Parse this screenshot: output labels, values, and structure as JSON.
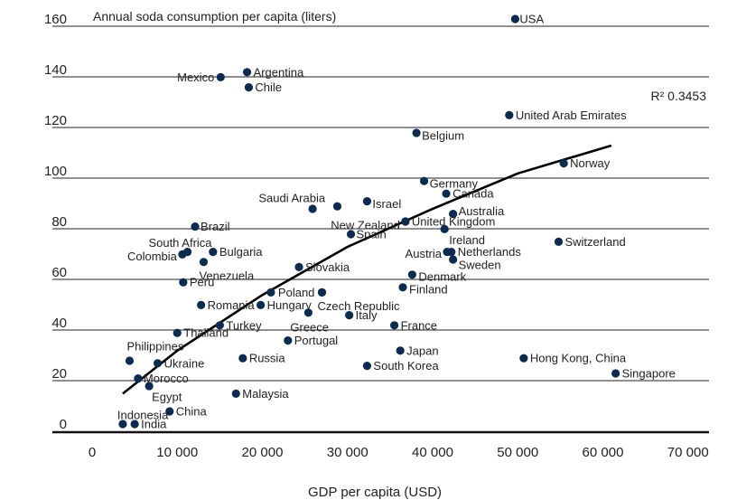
{
  "chart_data": {
    "type": "scatter",
    "title": "Annual soda consumption per capita (liters)",
    "xlabel": "GDP per capita (USD)",
    "ylabel": "",
    "xlim": [
      -5000,
      72000
    ],
    "ylim": [
      -2,
      165
    ],
    "xticks": [
      0,
      10000,
      20000,
      30000,
      40000,
      50000,
      60000,
      70000
    ],
    "xtick_labels": [
      "0",
      "10 000",
      "20 000",
      "30 000",
      "40 000",
      "50 000",
      "60 000",
      "70 000"
    ],
    "yticks": [
      0,
      20,
      40,
      60,
      80,
      100,
      120,
      140,
      160
    ],
    "grid": true,
    "annotation": "R² 0.3453",
    "marker_color": "#0d2a4f",
    "points": [
      {
        "name": "USA",
        "x": 49700,
        "y": 160,
        "lx": 5,
        "ly": 0,
        "anchor": "start"
      },
      {
        "name": "Argentina",
        "x": 18200,
        "y": 139,
        "lx": 7,
        "ly": 0,
        "anchor": "start"
      },
      {
        "name": "Mexico",
        "x": 15100,
        "y": 137,
        "lx": -7,
        "ly": 0,
        "anchor": "end"
      },
      {
        "name": "Chile",
        "x": 18400,
        "y": 133,
        "lx": 7,
        "ly": 0,
        "anchor": "start"
      },
      {
        "name": "United Arab Emirates",
        "x": 49000,
        "y": 122,
        "lx": 7,
        "ly": 0,
        "anchor": "start"
      },
      {
        "name": "Belgium",
        "x": 38100,
        "y": 115,
        "lx": 6,
        "ly": 3,
        "anchor": "start"
      },
      {
        "name": "Norway",
        "x": 55400,
        "y": 103,
        "lx": 7,
        "ly": 0,
        "anchor": "start"
      },
      {
        "name": "Germany",
        "x": 39000,
        "y": 96,
        "lx": 6,
        "ly": 3,
        "anchor": "start"
      },
      {
        "name": "Canada",
        "x": 41600,
        "y": 91,
        "lx": 7,
        "ly": 0,
        "anchor": "start"
      },
      {
        "name": "Saudi Arabia",
        "x": 25900,
        "y": 85,
        "lx": 14,
        "ly": -12,
        "anchor": "end"
      },
      {
        "name": "Israel",
        "x": 32300,
        "y": 88,
        "lx": 6,
        "ly": 3,
        "anchor": "start"
      },
      {
        "name": "",
        "x": 28800,
        "y": 86,
        "lx": 0,
        "ly": 0,
        "anchor": "start"
      },
      {
        "name": "Australia",
        "x": 42400,
        "y": 83,
        "lx": 6,
        "ly": -3,
        "anchor": "start"
      },
      {
        "name": "New Zealand",
        "x": 36800,
        "y": 80,
        "lx": -6,
        "ly": 4,
        "anchor": "end"
      },
      {
        "name": "United Kingdom",
        "x": 36800,
        "y": 80,
        "lx": 7,
        "ly": 0,
        "anchor": "start"
      },
      {
        "name": "Brazil",
        "x": 12100,
        "y": 78,
        "lx": 6,
        "ly": 0,
        "anchor": "start"
      },
      {
        "name": "Spain",
        "x": 30400,
        "y": 75,
        "lx": 6,
        "ly": 0,
        "anchor": "start"
      },
      {
        "name": "Ireland",
        "x": 41400,
        "y": 77,
        "lx": 5,
        "ly": 12,
        "anchor": "start"
      },
      {
        "name": "Switzerland",
        "x": 54800,
        "y": 72,
        "lx": 7,
        "ly": 0,
        "anchor": "start"
      },
      {
        "name": "South Africa",
        "x": 11200,
        "y": 68,
        "lx": 27,
        "ly": -10,
        "anchor": "end"
      },
      {
        "name": "Bulgaria",
        "x": 14200,
        "y": 68,
        "lx": 7,
        "ly": 0,
        "anchor": "start"
      },
      {
        "name": "Colombia",
        "x": 10600,
        "y": 67,
        "lx": -6,
        "ly": 2,
        "anchor": "end"
      },
      {
        "name": "Austria",
        "x": 41700,
        "y": 68,
        "lx": -6,
        "ly": 2,
        "anchor": "end"
      },
      {
        "name": "Netherlands",
        "x": 42200,
        "y": 68,
        "lx": 7,
        "ly": 0,
        "anchor": "start"
      },
      {
        "name": "Sweden",
        "x": 42400,
        "y": 65,
        "lx": 6,
        "ly": 6,
        "anchor": "start"
      },
      {
        "name": "Venezuela",
        "x": 13100,
        "y": 64,
        "lx": -5,
        "ly": 15,
        "anchor": "start"
      },
      {
        "name": "Slovakia",
        "x": 24300,
        "y": 62,
        "lx": 7,
        "ly": 0,
        "anchor": "start"
      },
      {
        "name": "Denmark",
        "x": 37600,
        "y": 59,
        "lx": 7,
        "ly": 2,
        "anchor": "start"
      },
      {
        "name": "Peru",
        "x": 10700,
        "y": 56,
        "lx": 7,
        "ly": 0,
        "anchor": "start"
      },
      {
        "name": "Finland",
        "x": 36500,
        "y": 54,
        "lx": 7,
        "ly": 2,
        "anchor": "start"
      },
      {
        "name": "Poland",
        "x": 21000,
        "y": 52,
        "lx": 8,
        "ly": 0,
        "anchor": "start"
      },
      {
        "name": "",
        "x": 27000,
        "y": 52,
        "lx": 0,
        "ly": 0,
        "anchor": "start"
      },
      {
        "name": "Czech Republic",
        "x": 27000,
        "y": 52,
        "lx": -5,
        "ly": 15,
        "anchor": "start"
      },
      {
        "name": "Romania",
        "x": 12800,
        "y": 47,
        "lx": 7,
        "ly": 0,
        "anchor": "start"
      },
      {
        "name": "Hungary",
        "x": 19800,
        "y": 47,
        "lx": 7,
        "ly": 0,
        "anchor": "start"
      },
      {
        "name": "Greece",
        "x": 25400,
        "y": 44,
        "lx": -20,
        "ly": 16,
        "anchor": "start"
      },
      {
        "name": "Italy",
        "x": 30200,
        "y": 43,
        "lx": 7,
        "ly": 0,
        "anchor": "start"
      },
      {
        "name": "France",
        "x": 35500,
        "y": 39,
        "lx": 7,
        "ly": 0,
        "anchor": "start"
      },
      {
        "name": "Turkey",
        "x": 15000,
        "y": 39,
        "lx": 7,
        "ly": 0,
        "anchor": "start"
      },
      {
        "name": "Thailand",
        "x": 10000,
        "y": 36,
        "lx": 7,
        "ly": 0,
        "anchor": "start"
      },
      {
        "name": "Portugal",
        "x": 23000,
        "y": 33,
        "lx": 7,
        "ly": 0,
        "anchor": "start"
      },
      {
        "name": "Philippines",
        "x": 4400,
        "y": 25,
        "lx": -3,
        "ly": -16,
        "anchor": "start"
      },
      {
        "name": "Japan",
        "x": 36200,
        "y": 29,
        "lx": 7,
        "ly": 0,
        "anchor": "start"
      },
      {
        "name": "Russia",
        "x": 17700,
        "y": 26,
        "lx": 7,
        "ly": 0,
        "anchor": "start"
      },
      {
        "name": "Ukraine",
        "x": 7700,
        "y": 24,
        "lx": 7,
        "ly": 0,
        "anchor": "start"
      },
      {
        "name": "Hong Kong, China",
        "x": 50700,
        "y": 26,
        "lx": 7,
        "ly": 0,
        "anchor": "start"
      },
      {
        "name": "South Korea",
        "x": 32300,
        "y": 23,
        "lx": 7,
        "ly": 0,
        "anchor": "start"
      },
      {
        "name": "Singapore",
        "x": 61500,
        "y": 20,
        "lx": 7,
        "ly": 0,
        "anchor": "start"
      },
      {
        "name": "Morocco",
        "x": 5400,
        "y": 18,
        "lx": 6,
        "ly": 0,
        "anchor": "start"
      },
      {
        "name": "Egypt",
        "x": 6700,
        "y": 15,
        "lx": 3,
        "ly": 12,
        "anchor": "start"
      },
      {
        "name": "Malaysia",
        "x": 16900,
        "y": 12,
        "lx": 7,
        "ly": 0,
        "anchor": "start"
      },
      {
        "name": "China",
        "x": 9100,
        "y": 5,
        "lx": 7,
        "ly": 0,
        "anchor": "start"
      },
      {
        "name": "Indonesia",
        "x": 3600,
        "y": 0,
        "lx": -6,
        "ly": -10,
        "anchor": "start"
      },
      {
        "name": "India",
        "x": 5000,
        "y": 0,
        "lx": 7,
        "ly": 0,
        "anchor": "start"
      }
    ],
    "trendline": [
      {
        "x": 3600,
        "y": 12
      },
      {
        "x": 10000,
        "y": 29
      },
      {
        "x": 20000,
        "y": 51
      },
      {
        "x": 30000,
        "y": 70
      },
      {
        "x": 40000,
        "y": 85
      },
      {
        "x": 50000,
        "y": 99
      },
      {
        "x": 61000,
        "y": 110
      }
    ]
  }
}
